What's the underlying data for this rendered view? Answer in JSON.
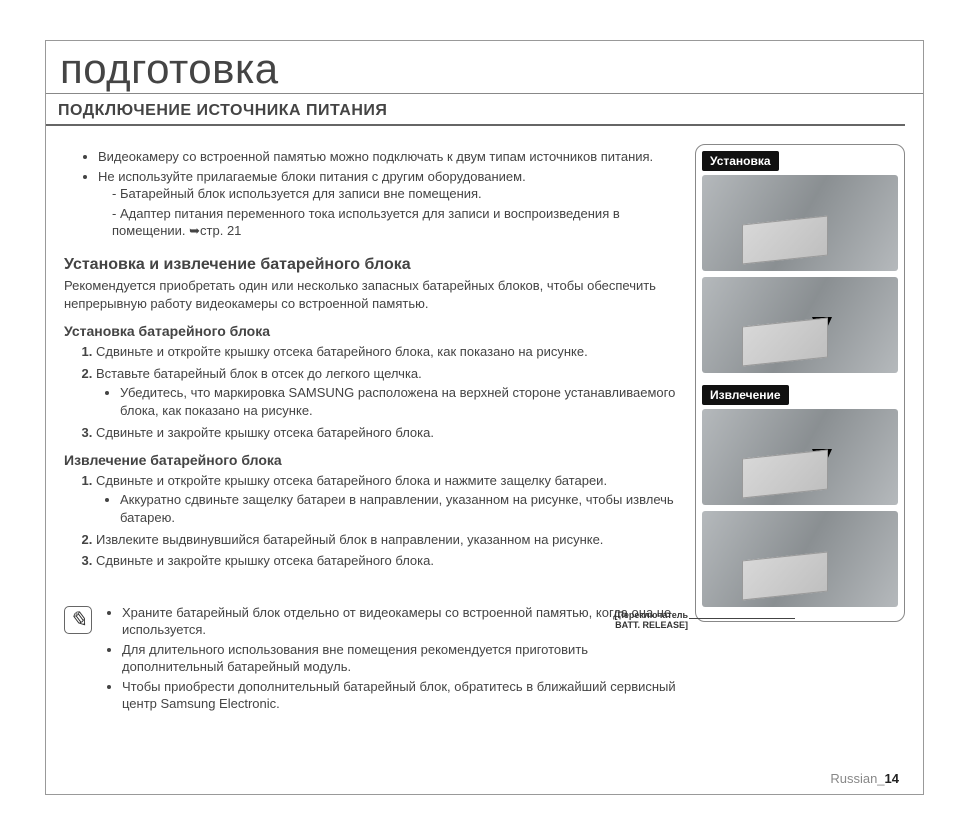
{
  "title": "подготовка",
  "section": "ПОДКЛЮЧЕНИЕ ИСТОЧНИКА ПИТАНИЯ",
  "top_bullets": [
    "Видеокамеру со встроенной памятью можно подключать к двум типам источников питания.",
    "Не используйте прилагаемые блоки питания с другим оборудованием."
  ],
  "top_sub": [
    "Батарейный блок используется для записи вне помещения.",
    "Адаптер питания переменного тока используется для записи и воспроизведения в помещении. ➥стр. 21"
  ],
  "sub1": "Установка и извлечение батарейного блока",
  "sub1_para": "Рекомендуется приобретать один или несколько запасных батарейных блоков, чтобы обеспечить непрерывную работу видеокамеры со встроенной памятью.",
  "install_head": "Установка батарейного блока",
  "install_steps": {
    "s1": "Сдвиньте и откройте крышку отсека батарейного блока, как показано на рисунке.",
    "s2": "Вставьте батарейный блок в отсек до легкого щелчка.",
    "s2_sub": "Убедитесь, что маркировка SAMSUNG расположена на верхней стороне устанавливаемого блока, как показано на рисунке.",
    "s3": "Сдвиньте и закройте крышку отсека батарейного блока."
  },
  "remove_head": "Извлечение батарейного блока",
  "remove_steps": {
    "s1": "Сдвиньте и откройте крышку отсека батарейного блока и нажмите защелку батареи.",
    "s1_sub": "Аккуратно сдвиньте защелку батареи в направлении, указанном на рисунке, чтобы извлечь батарею.",
    "s2": "Извлеките выдвинувшийся батарейный блок в направлении, указанном на рисунке.",
    "s3": "Сдвиньте и закройте крышку отсека батарейного блока."
  },
  "notes": [
    "Храните батарейный блок отдельно от видеокамеры со встроенной памятью, когда она не используется.",
    "Для длительного использования вне помещения рекомендуется приготовить дополнительный батарейный модуль.",
    "Чтобы приобрести дополнительный батарейный блок, обратитесь в ближайший сервисный центр Samsung Electronic."
  ],
  "side": {
    "install_label": "Установка",
    "remove_label": "Извлечение"
  },
  "callout": {
    "l1": "[Переключатель",
    "l2": "BATT. RELEASE]"
  },
  "footer_lang": "Russian_",
  "footer_page": "14",
  "colors": {
    "text": "#444",
    "rule": "#888",
    "black": "#111"
  }
}
